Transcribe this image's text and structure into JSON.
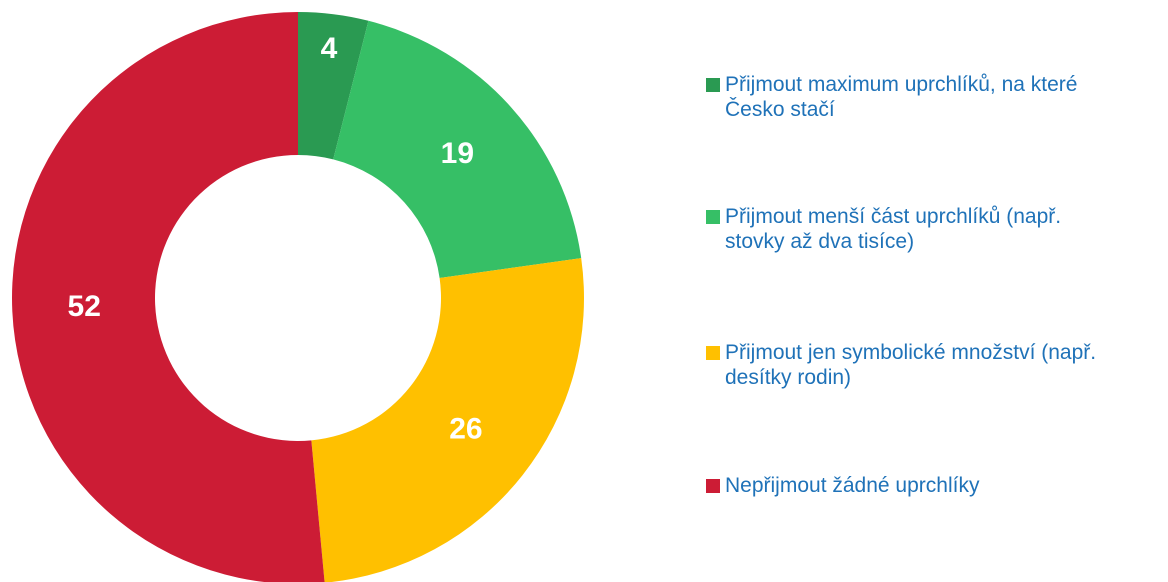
{
  "chart_data": {
    "type": "donut",
    "categories": [
      "Přijmout maximum uprchlíků, na které Česko stačí",
      "Přijmout menší část uprchlíků (např. stovky až dva tisíce)",
      "Přijmout jen symbolické množství (např. desítky rodin)",
      "Nepřijmout žádné uprchlíky"
    ],
    "values": [
      4,
      19,
      26,
      52
    ],
    "colors": [
      "#2a9a52",
      "#36bf66",
      "#ffc000",
      "#cc1c35"
    ]
  }
}
